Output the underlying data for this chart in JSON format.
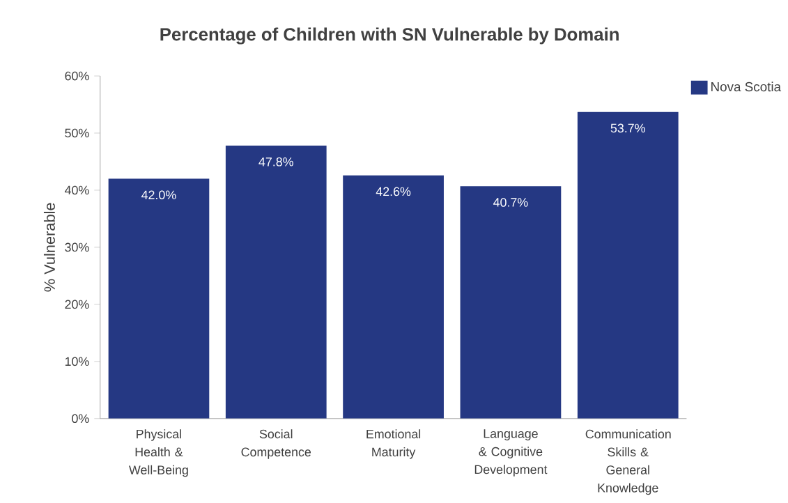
{
  "chart_data": {
    "type": "bar",
    "title": "Percentage of Children with SN Vulnerable by Domain",
    "ylabel": "% Vulnerable",
    "categories": [
      "Physical Health & Well-Being",
      "Social Competence",
      "Emotional Maturity",
      "Language & Cognitive Development",
      "Communication Skills & General Knowledge"
    ],
    "series": [
      {
        "name": "Nova Scotia",
        "color": "#253883",
        "values": [
          42.0,
          47.8,
          42.6,
          40.7,
          53.7
        ],
        "value_labels": [
          "42.0%",
          "47.8%",
          "42.6%",
          "40.7%",
          "53.7%"
        ]
      }
    ],
    "ylim": [
      0,
      60
    ],
    "yticks": [
      {
        "value": 0,
        "label": "0%"
      },
      {
        "value": 10,
        "label": "10%"
      },
      {
        "value": 20,
        "label": "20%"
      },
      {
        "value": 30,
        "label": "30%"
      },
      {
        "value": 40,
        "label": "40%"
      },
      {
        "value": 50,
        "label": "50%"
      },
      {
        "value": 60,
        "label": "60%"
      }
    ],
    "legend": "top right"
  }
}
